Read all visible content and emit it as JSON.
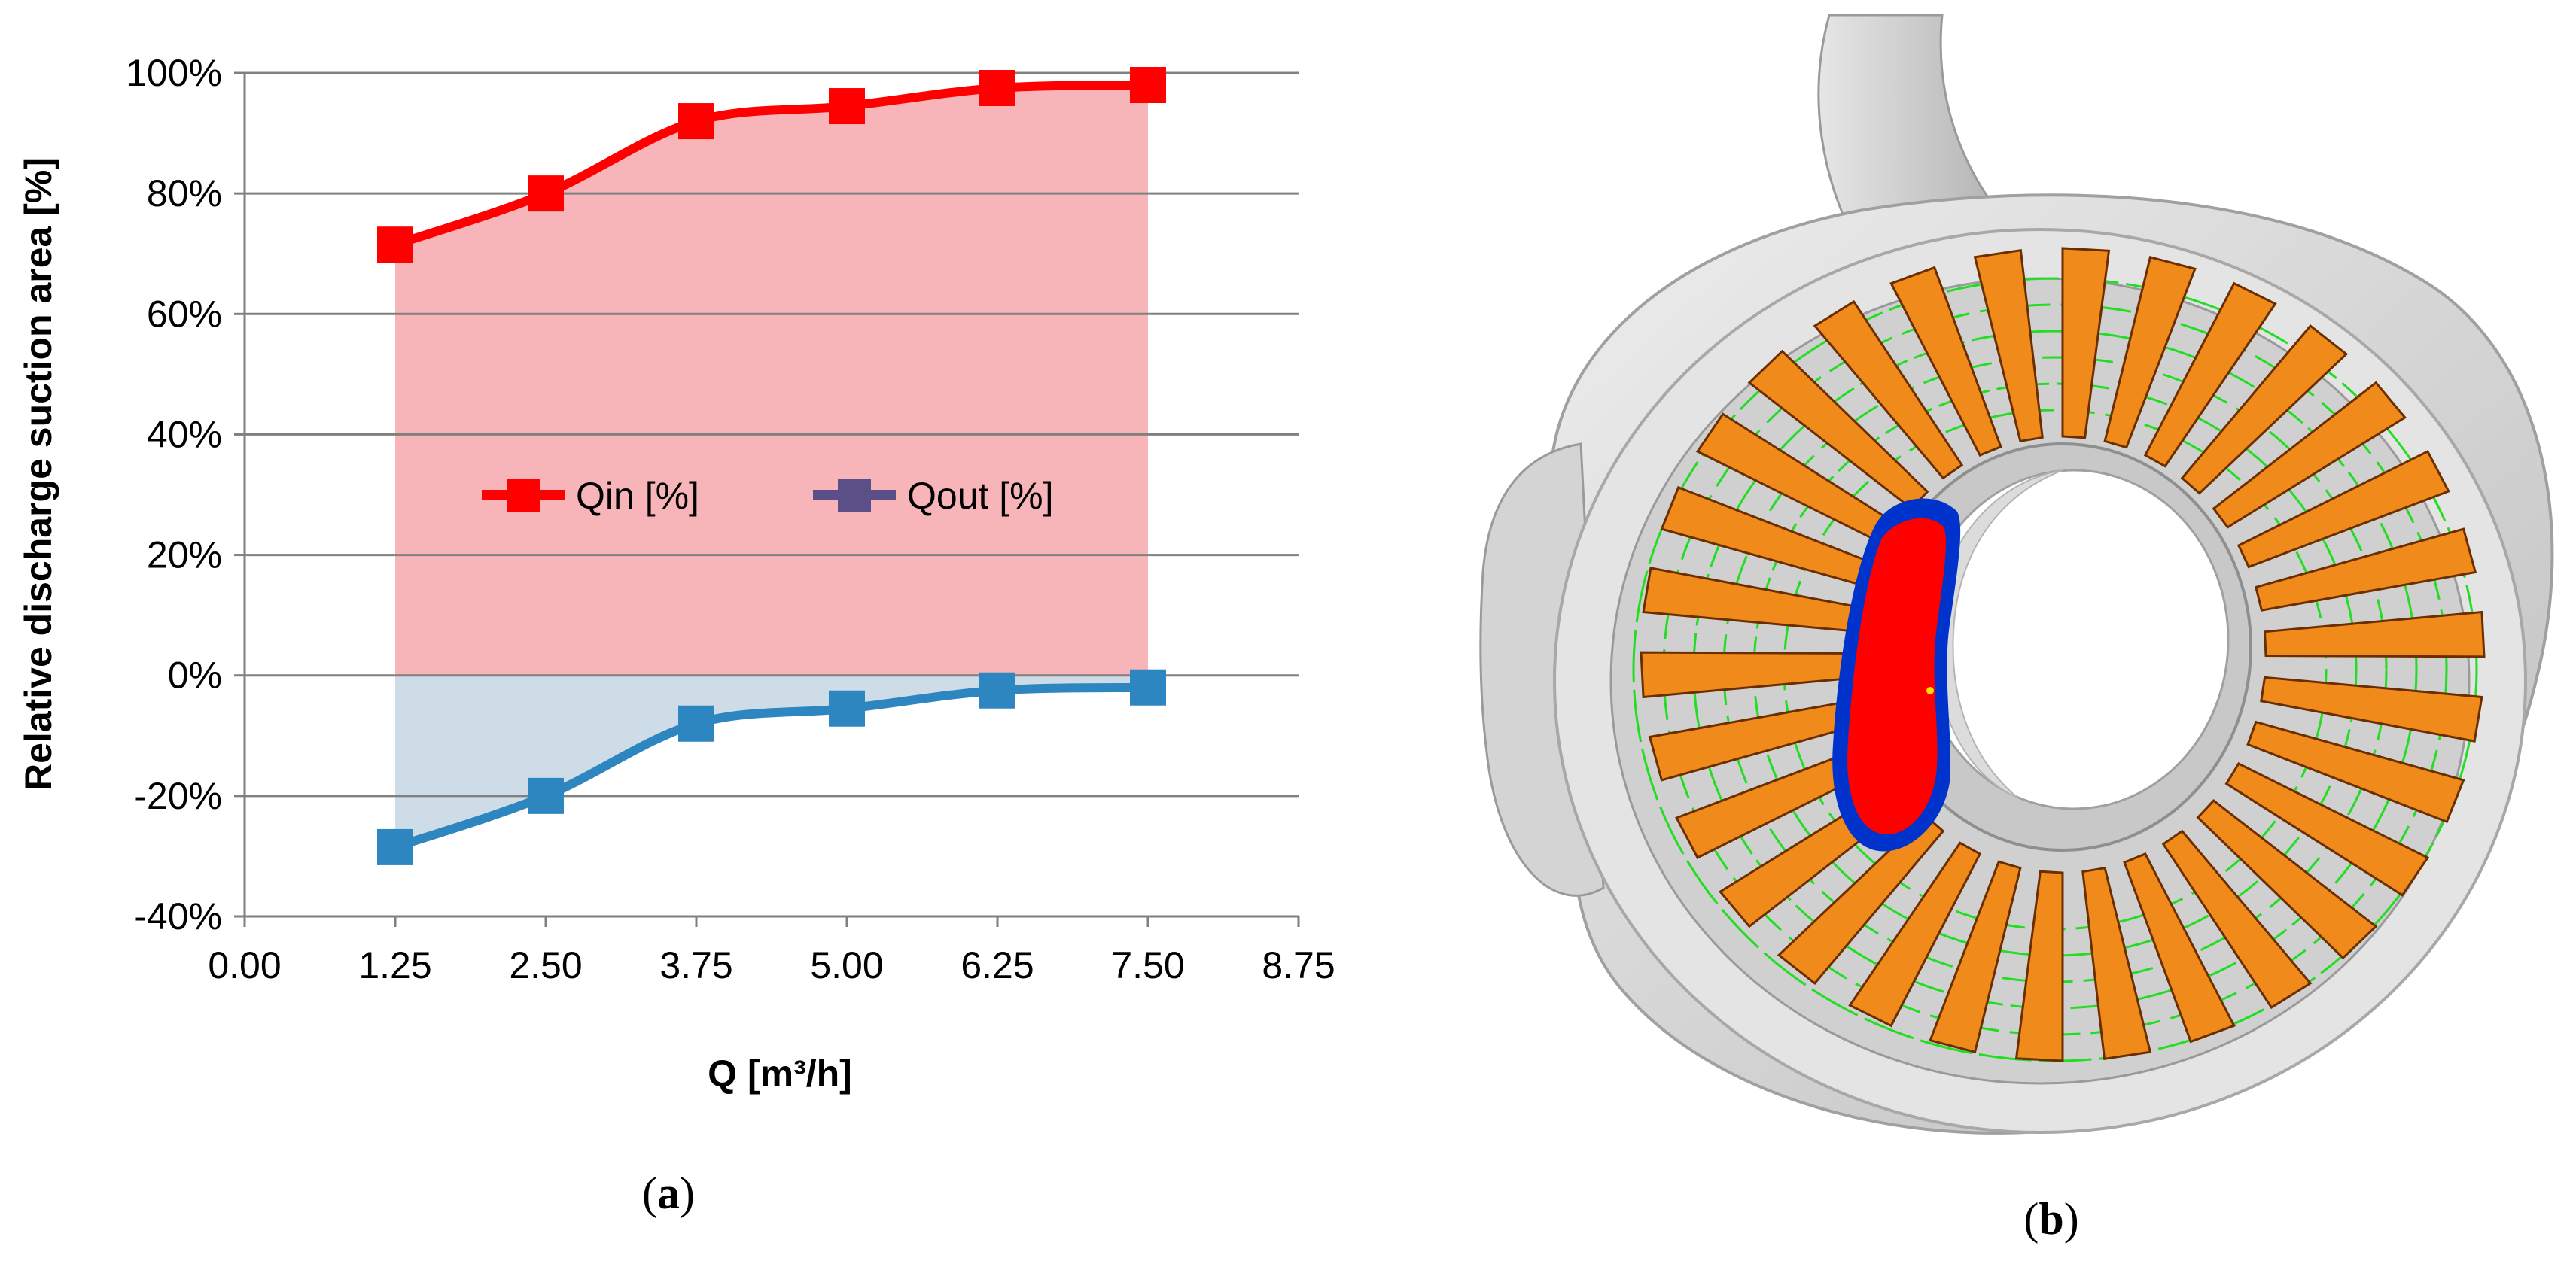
{
  "panels": {
    "a_label_prefix": "(",
    "a_label_letter": "a",
    "a_label_suffix": ")",
    "b_label_prefix": "(",
    "b_label_letter": "b",
    "b_label_suffix": ")"
  },
  "colors": {
    "qin": "#ff0000",
    "qout": "#2e86c1",
    "qout_legend": "#5a4f86",
    "qin_fill": "#f7a8ad",
    "qout_fill": "#c6d6e4",
    "grid": "#808080",
    "impeller_orange": "#f08a1a",
    "housing_gray": "#d8d8d8",
    "blade_edge": "#6b2e00",
    "vapor_red": "#ff0000",
    "vapor_blue": "#0033cc",
    "streamline_green": "#22dd22"
  },
  "chart_data": {
    "type": "line",
    "title": "",
    "xlabel": "Q [m³/h]",
    "ylabel": "Relative discharge suction area [%]",
    "xlim": [
      0,
      8.75
    ],
    "ylim": [
      -40,
      100
    ],
    "xticks": [
      0,
      1.25,
      2.5,
      3.75,
      5,
      6.25,
      7.5,
      8.75
    ],
    "xtick_labels": [
      "0.00",
      "1.25",
      "2.50",
      "3.75",
      "5.00",
      "6.25",
      "7.50",
      "8.75"
    ],
    "yticks": [
      -40,
      -20,
      0,
      20,
      40,
      60,
      80,
      100
    ],
    "ytick_labels": [
      "-40%",
      "-20%",
      "0%",
      "20%",
      "40%",
      "60%",
      "80%",
      "100%"
    ],
    "x": [
      1.25,
      2.5,
      3.75,
      5,
      6.25,
      7.5
    ],
    "series": [
      {
        "name": "Qin [%]",
        "values": [
          71.5,
          80,
          92,
          94.5,
          97.5,
          98
        ]
      },
      {
        "name": "Qout [%]",
        "values": [
          -28.5,
          -20,
          -8,
          -5.5,
          -2.5,
          -2
        ]
      }
    ],
    "grid": true,
    "legend": "center"
  }
}
